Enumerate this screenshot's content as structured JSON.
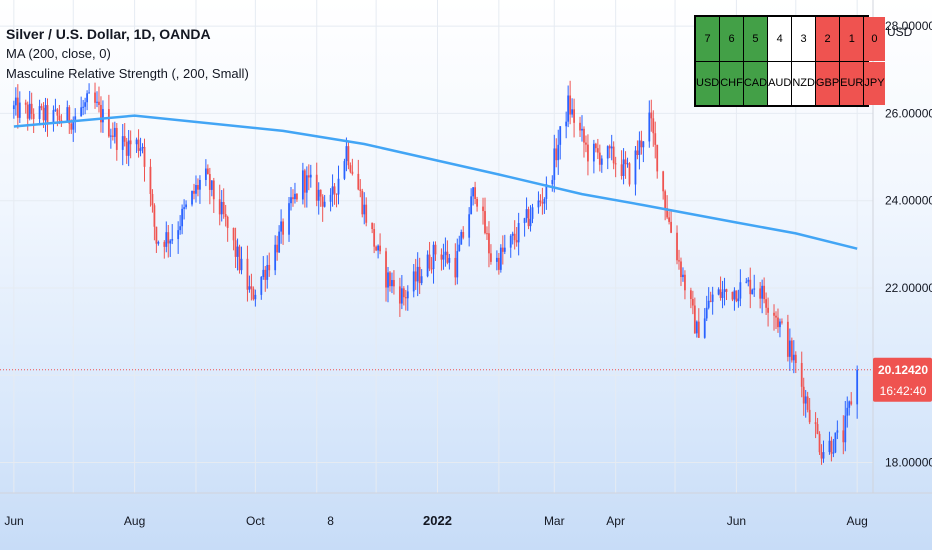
{
  "legend": {
    "title": "Silver / U.S. Dollar, 1D, OANDA",
    "ma": "MA (200, close, 0)",
    "indicator": "Masculine Relative Strength (, 200, Small)"
  },
  "strength_table": {
    "ranks": [
      "7",
      "6",
      "5",
      "4",
      "3",
      "2",
      "1",
      "0"
    ],
    "currencies": [
      "USD",
      "CHF",
      "CAD",
      "AUD",
      "NZD",
      "GBP",
      "EUR",
      "JPY"
    ],
    "colors": [
      "#43a047",
      "#43a047",
      "#43a047",
      "#ffffff",
      "#ffffff",
      "#ef5350",
      "#ef5350",
      "#ef5350"
    ]
  },
  "price_axis": {
    "unit": "USD",
    "ticks": [
      "28.00000",
      "26.00000",
      "24.00000",
      "22.00000",
      "18.00000"
    ],
    "last_price": "20.12420",
    "countdown": "16:42:40"
  },
  "time_axis": {
    "ticks": [
      "Jun",
      "Aug",
      "Oct",
      "8",
      "2022",
      "Mar",
      "Apr",
      "Jun",
      "Aug"
    ],
    "bold_tick": "2022"
  },
  "colors": {
    "up": "#2962ff",
    "down": "#ef5350",
    "ma": "#42a5f5",
    "price_label": "#ef5350"
  },
  "chart_data": {
    "type": "candlestick",
    "symbol": "Silver / U.S. Dollar",
    "interval": "1D",
    "ylim": [
      17.3,
      28.6
    ],
    "last_price": 20.1242,
    "close_anchors": [
      {
        "date": "2021-06-01",
        "close": 26.1
      },
      {
        "date": "2021-06-20",
        "close": 25.9
      },
      {
        "date": "2021-07-01",
        "close": 25.9
      },
      {
        "date": "2021-07-10",
        "close": 26.3
      },
      {
        "date": "2021-07-25",
        "close": 25.3
      },
      {
        "date": "2021-08-05",
        "close": 25.3
      },
      {
        "date": "2021-08-12",
        "close": 23.1
      },
      {
        "date": "2021-08-20",
        "close": 23.2
      },
      {
        "date": "2021-09-05",
        "close": 24.6
      },
      {
        "date": "2021-09-15",
        "close": 23.6
      },
      {
        "date": "2021-09-29",
        "close": 21.8
      },
      {
        "date": "2021-10-10",
        "close": 22.8
      },
      {
        "date": "2021-10-25",
        "close": 24.5
      },
      {
        "date": "2021-11-08",
        "close": 23.9
      },
      {
        "date": "2021-11-16",
        "close": 25.2
      },
      {
        "date": "2021-11-25",
        "close": 23.8
      },
      {
        "date": "2021-12-05",
        "close": 22.3
      },
      {
        "date": "2021-12-15",
        "close": 21.8
      },
      {
        "date": "2022-01-01",
        "close": 22.9
      },
      {
        "date": "2022-01-10",
        "close": 22.5
      },
      {
        "date": "2022-01-20",
        "close": 24.3
      },
      {
        "date": "2022-01-29",
        "close": 22.5
      },
      {
        "date": "2022-02-10",
        "close": 23.2
      },
      {
        "date": "2022-02-25",
        "close": 24.2
      },
      {
        "date": "2022-03-08",
        "close": 26.2
      },
      {
        "date": "2022-03-18",
        "close": 25.1
      },
      {
        "date": "2022-03-30",
        "close": 25.0
      },
      {
        "date": "2022-04-08",
        "close": 24.6
      },
      {
        "date": "2022-04-18",
        "close": 25.9
      },
      {
        "date": "2022-04-28",
        "close": 23.5
      },
      {
        "date": "2022-05-12",
        "close": 21.0
      },
      {
        "date": "2022-05-20",
        "close": 21.8
      },
      {
        "date": "2022-06-10",
        "close": 22.1
      },
      {
        "date": "2022-06-20",
        "close": 21.5
      },
      {
        "date": "2022-07-01",
        "close": 20.2
      },
      {
        "date": "2022-07-14",
        "close": 18.3
      },
      {
        "date": "2022-07-25",
        "close": 18.6
      },
      {
        "date": "2022-08-01",
        "close": 20.1
      }
    ],
    "moving_average": {
      "name": "MA (200, close, 0)",
      "points": [
        {
          "date": "2021-06-01",
          "value": 25.7
        },
        {
          "date": "2021-08-01",
          "value": 25.95
        },
        {
          "date": "2021-10-15",
          "value": 25.6
        },
        {
          "date": "2021-11-25",
          "value": 25.3
        },
        {
          "date": "2022-02-01",
          "value": 24.6
        },
        {
          "date": "2022-03-15",
          "value": 24.15
        },
        {
          "date": "2022-04-15",
          "value": 23.9
        },
        {
          "date": "2022-06-01",
          "value": 23.5
        },
        {
          "date": "2022-07-01",
          "value": 23.25
        },
        {
          "date": "2022-08-01",
          "value": 22.9
        }
      ]
    },
    "x_range": [
      "2021-05-25",
      "2022-08-09"
    ]
  }
}
